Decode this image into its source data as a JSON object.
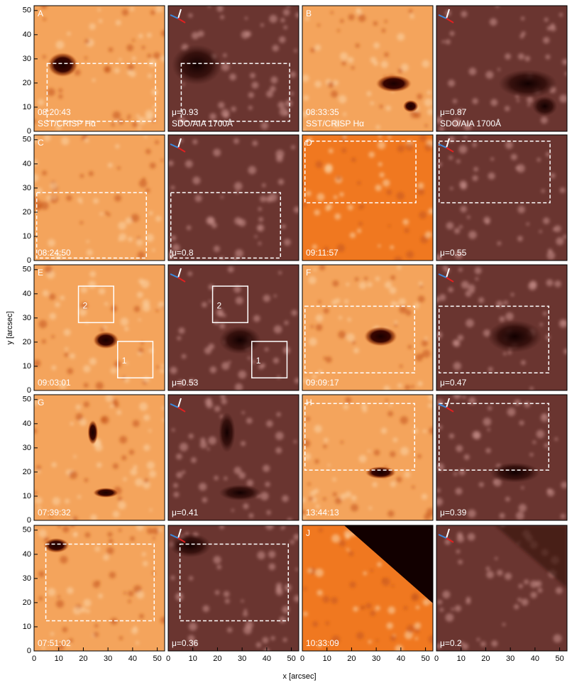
{
  "axes": {
    "x_label": "x [arcsec]",
    "y_label": "y [arcsec]",
    "xlim": [
      0,
      53
    ],
    "ylim": [
      0,
      52
    ],
    "ticks": [
      0,
      10,
      20,
      30,
      40,
      50
    ]
  },
  "panels": [
    {
      "letter": "A",
      "time": "08:20:43",
      "instrument": "SST/CRISP Hα",
      "mu": "μ=0.93",
      "aia": "SDO/AIA 1700Å"
    },
    {
      "letter": "B",
      "time": "08:33:35",
      "instrument": "SST/CRISP Hα",
      "mu": "μ=0.87",
      "aia": "SDO/AIA 1700Å"
    },
    {
      "letter": "C",
      "time": "08:24:50",
      "mu": "μ=0.8"
    },
    {
      "letter": "D",
      "time": "09:11:57",
      "mu": "μ=0.55"
    },
    {
      "letter": "E",
      "time": "09:03:01",
      "mu": "μ=0.53",
      "box_labels": [
        "2",
        "1"
      ]
    },
    {
      "letter": "F",
      "time": "09:09:17",
      "mu": "μ=0.47"
    },
    {
      "letter": "G",
      "time": "07:39:32",
      "mu": "μ=0.41"
    },
    {
      "letter": "H",
      "time": "13:44:13",
      "mu": "μ=0.39"
    },
    {
      "time": "07:51:02",
      "mu": "μ=0.36"
    },
    {
      "letter": "J",
      "time": "10:33:09",
      "mu": "μ=0.2"
    }
  ]
}
